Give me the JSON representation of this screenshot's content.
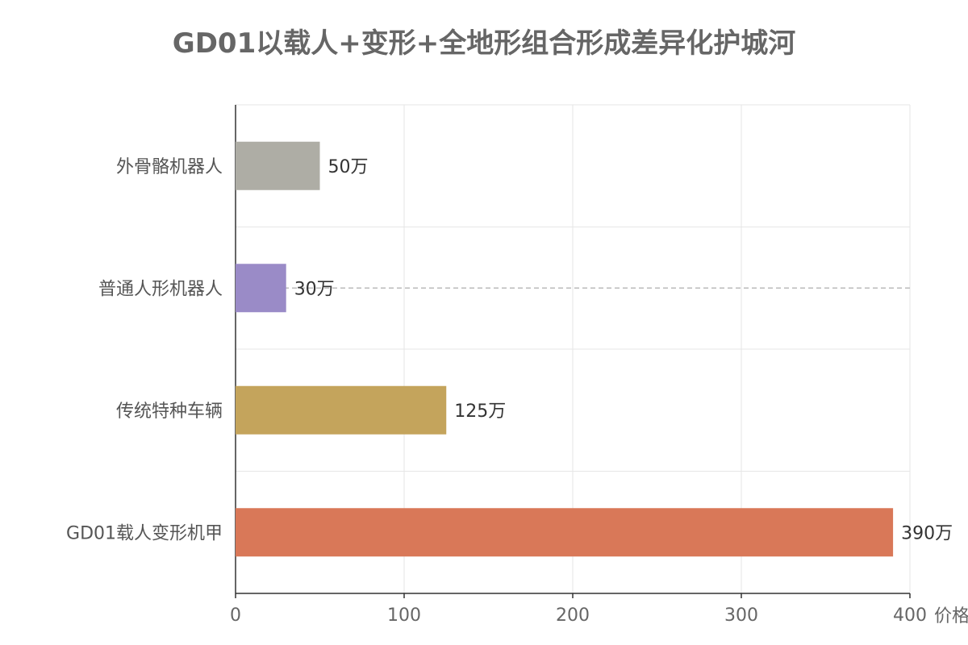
{
  "chart_data": {
    "type": "bar",
    "orientation": "horizontal",
    "title": "GD01以载人+变形+全地形组合形成差异化护城河",
    "categories": [
      "外骨骼机器人",
      "普通人形机器人",
      "传统特种车辆",
      "GD01载人变形机甲"
    ],
    "values": [
      50,
      30,
      125,
      390
    ],
    "value_labels": [
      "50万",
      "30万",
      "125万",
      "390万"
    ],
    "colors": [
      "#AEADA5",
      "#9A8BC7",
      "#C4A45C",
      "#D97858"
    ],
    "xlabel": "价格",
    "ylabel": "",
    "xlim": [
      0,
      400
    ],
    "xticks": [
      0,
      100,
      200,
      300,
      400
    ],
    "grid": true,
    "reference_line": {
      "category": "普通人形机器人",
      "style": "dashed",
      "color": "#BBBBBB"
    }
  }
}
